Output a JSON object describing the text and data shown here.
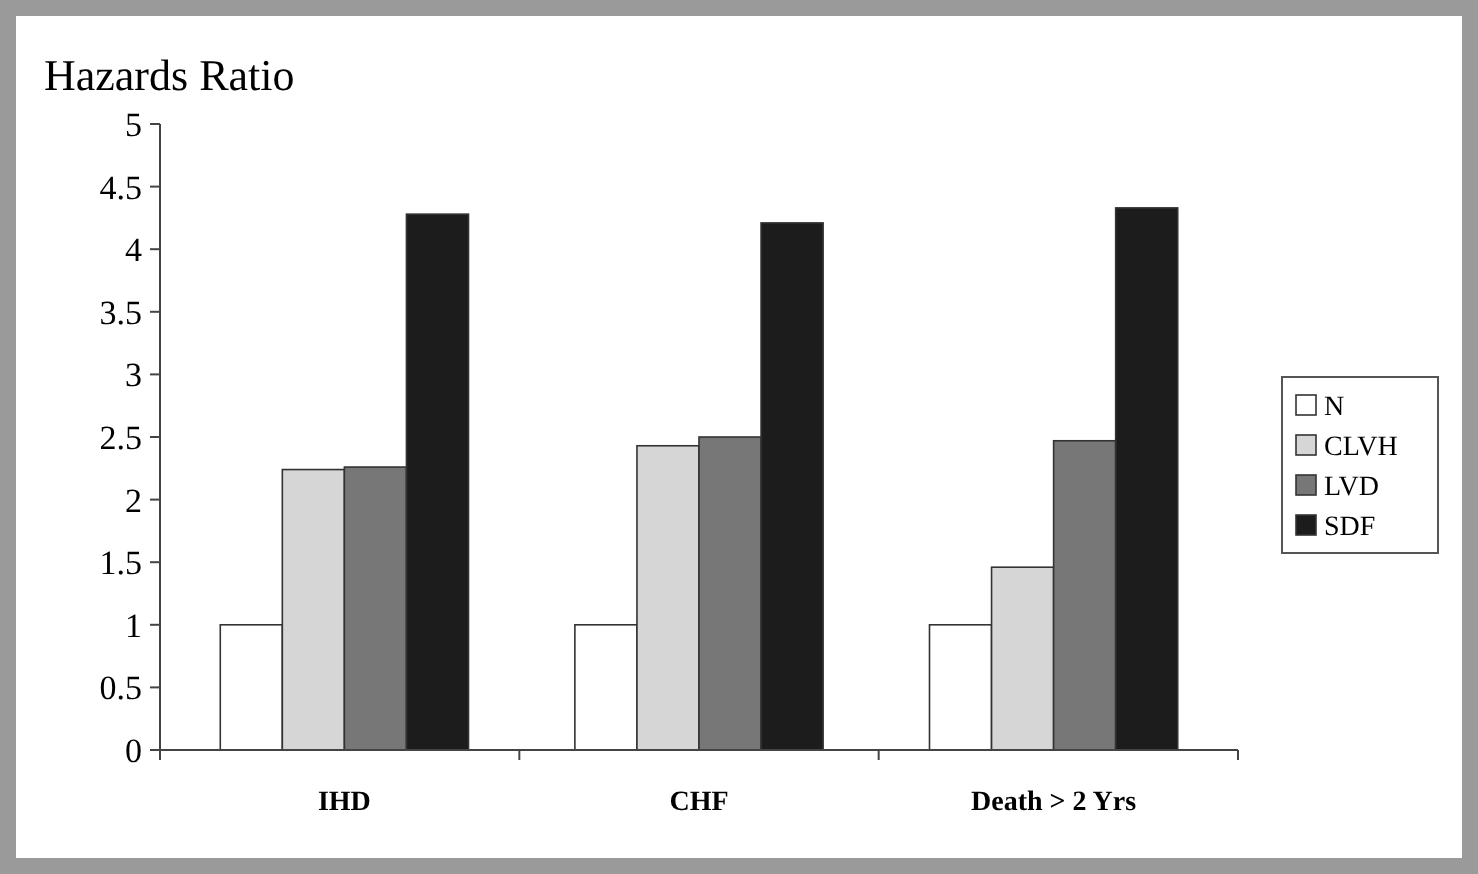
{
  "chart_data": {
    "type": "bar",
    "title": "Hazards Ratio",
    "categories": [
      "IHD",
      "CHF",
      "Death > 2 Yrs"
    ],
    "series": [
      {
        "name": "N",
        "color": "#ffffff",
        "values": [
          1.0,
          1.0,
          1.0
        ]
      },
      {
        "name": "CLVH",
        "color": "#d6d6d6",
        "values": [
          2.24,
          2.43,
          1.46
        ]
      },
      {
        "name": "LVD",
        "color": "#777777",
        "values": [
          2.26,
          2.5,
          2.47
        ]
      },
      {
        "name": "SDF",
        "color": "#1c1c1c",
        "values": [
          4.28,
          4.21,
          4.33
        ]
      }
    ],
    "ylim": [
      0,
      5
    ],
    "yticks": [
      0,
      0.5,
      1,
      1.5,
      2,
      2.5,
      3,
      3.5,
      4,
      4.5,
      5
    ],
    "grid": false,
    "legend": "right"
  }
}
